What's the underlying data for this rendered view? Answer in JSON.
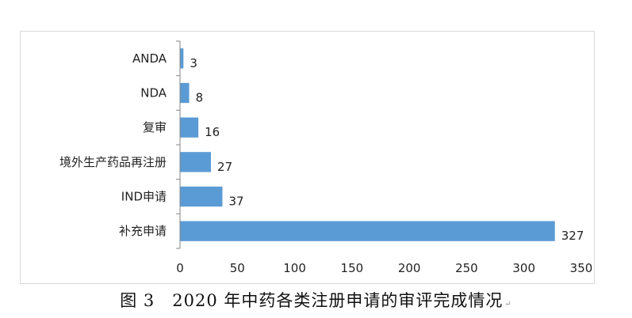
{
  "chart_data": {
    "type": "bar",
    "orientation": "horizontal",
    "categories": [
      "ANDA",
      "NDA",
      "复审",
      "境外生产药品再注册",
      "IND申请",
      "补充申请"
    ],
    "values": [
      3,
      8,
      16,
      27,
      37,
      327
    ],
    "xlim": [
      0,
      350
    ],
    "xticks": [
      0,
      50,
      100,
      150,
      200,
      250,
      300,
      350
    ],
    "bar_color": "#5B9BD5",
    "grid": false,
    "legend": "none",
    "data_labels": true
  },
  "caption": {
    "text": "图 3　2020 年中药各类注册申请的审评完成情况",
    "mark": "↵"
  }
}
